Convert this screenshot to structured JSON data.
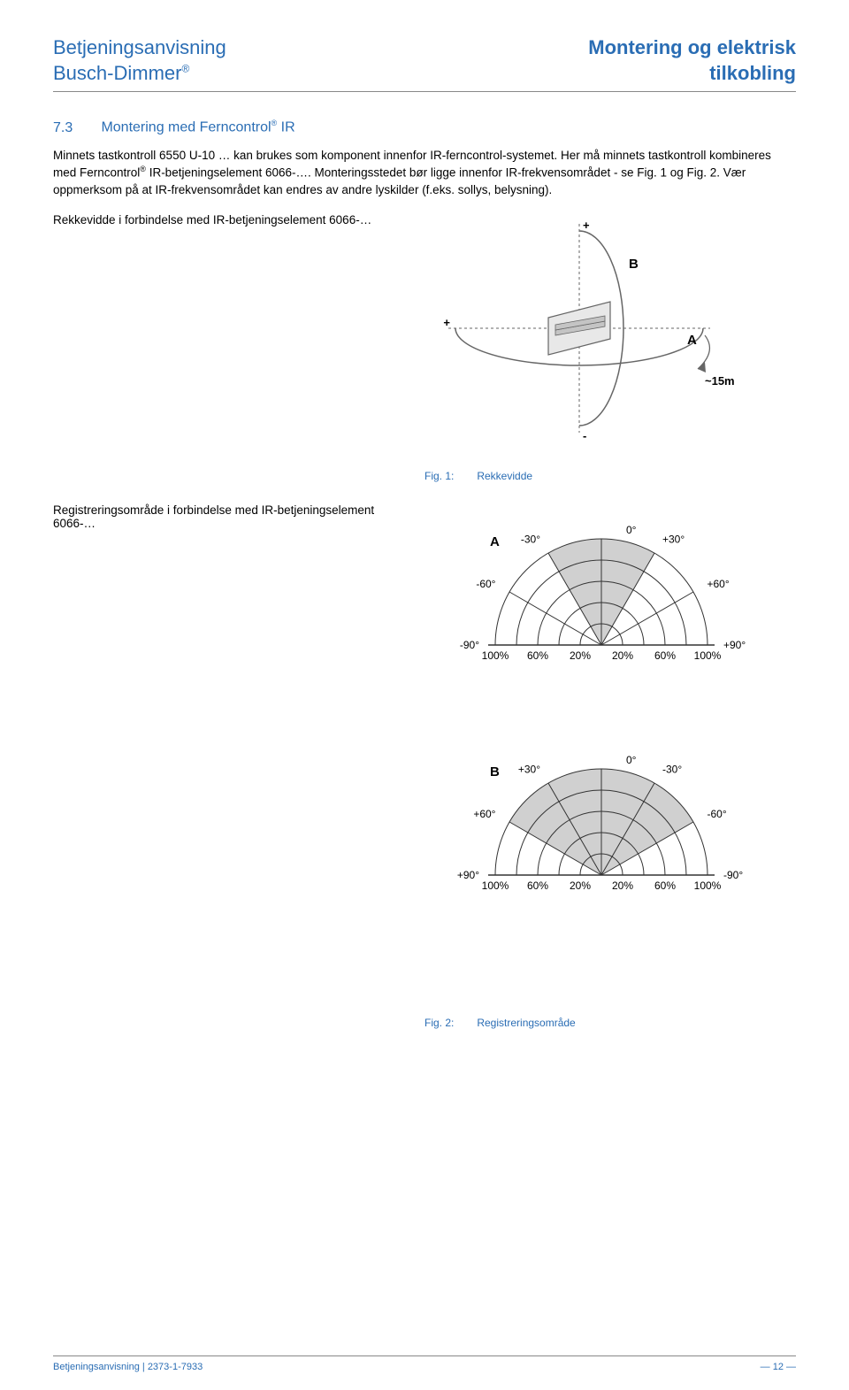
{
  "header": {
    "left_line1": "Betjeningsanvisning",
    "left_line2_pre": "Busch-Dimmer",
    "left_line2_sup": "®",
    "right_line1": "Montering og elektrisk",
    "right_line2": "tilkobling"
  },
  "section": {
    "number": "7.3",
    "title_pre": "Montering med Ferncontrol",
    "title_sup": "®",
    "title_post": " IR"
  },
  "paragraph": {
    "p1": "Minnets tastkontroll 6550 U-10 … kan brukes som komponent innenfor IR-ferncontrol-systemet. Her må minnets tastkontroll kombineres med Ferncontrol",
    "p1_sup": "®",
    "p1b": " IR-betjeningselement 6066-…. Monteringsstedet bør ligge innenfor IR-frekvensområdet - se Fig. 1 og Fig. 2. Vær oppmerksom på at IR-frekvensområdet kan endres av andre lyskilder (f.eks. sollys, belysning)."
  },
  "labels": {
    "rekkevidde_text": "Rekkevidde i forbindelse med IR-betjeningselement 6066-…",
    "registrering_text": "Registreringsområde i forbindelse med IR-betjeningselement 6066-…"
  },
  "fig1": {
    "caption_num": "Fig. 1:",
    "caption_text": "Rekkevidde",
    "label_A": "A",
    "label_B": "B",
    "distance": "~15m",
    "plus": "+",
    "minus": "-",
    "stroke": "#666666",
    "fill_panel": "#e8e8e8",
    "fill_slot": "#c4c4c4"
  },
  "fig2": {
    "caption_num": "Fig. 2:",
    "caption_text": "Registreringsområde",
    "chartA": {
      "label": "A",
      "angles_left": [
        "-30°",
        "-60°",
        "-90°"
      ],
      "angles_right": [
        "+30°",
        "+60°",
        "+90°"
      ],
      "top_angle": "0°",
      "radial_labels": [
        "100%",
        "60%",
        "20%",
        "20%",
        "60%",
        "100%"
      ],
      "highlight_start_deg": -30,
      "highlight_end_deg": 30
    },
    "chartB": {
      "label": "B",
      "angles_left": [
        "+30°",
        "+60°",
        "+90°"
      ],
      "angles_right": [
        "-30°",
        "-60°",
        "-90°"
      ],
      "top_angle": "0°",
      "radial_labels": [
        "100%",
        "60%",
        "20%",
        "20%",
        "60%",
        "100%"
      ],
      "highlight_start_deg": -60,
      "highlight_end_deg": 60
    },
    "grid_color": "#333333",
    "highlight_color": "#d0d0d0",
    "text_color": "#000000",
    "font_size": 12
  },
  "footer": {
    "left": "Betjeningsanvisning | 2373-1-7933",
    "right": "— 12 —"
  }
}
